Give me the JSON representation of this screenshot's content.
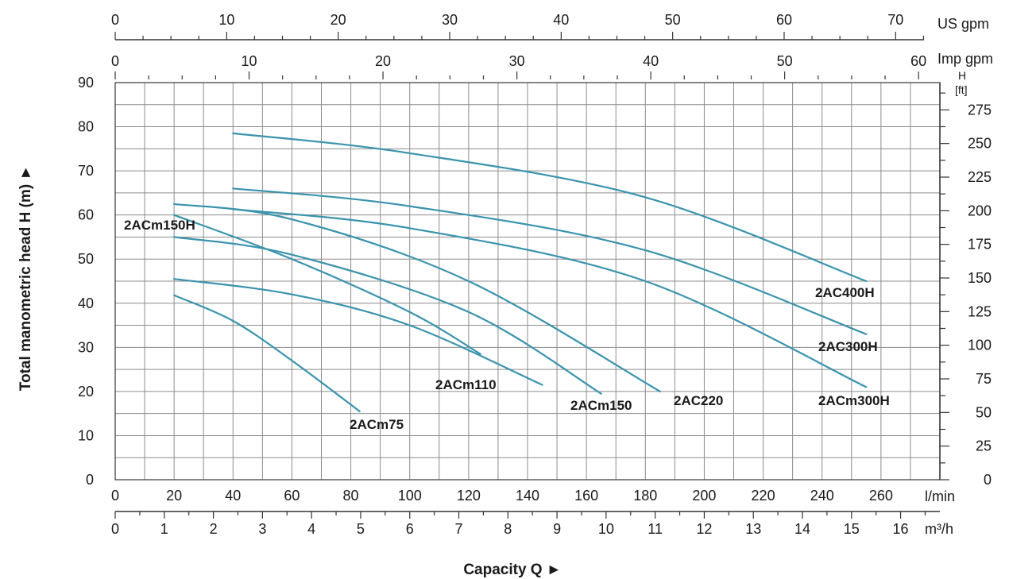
{
  "chart_data": {
    "type": "line",
    "xlabel": "Capacity Q  ►",
    "ylabel": "Total manometric head H (m)  ►",
    "line_color": "#3a93ad",
    "x_unit": "l/min",
    "xlim": [
      0,
      280
    ],
    "ylim": [
      0,
      90
    ],
    "grid": true,
    "axes": {
      "left": {
        "unit": "m",
        "ticks": [
          "0",
          "10",
          "20",
          "30",
          "40",
          "50",
          "60",
          "70",
          "80",
          "90"
        ]
      },
      "right": {
        "unit_line1": "H",
        "unit_line2": "[ft]",
        "ticks": [
          "0",
          "25",
          "50",
          "75",
          "100",
          "125",
          "150",
          "175",
          "200",
          "225",
          "250",
          "275"
        ]
      },
      "bottom_lmin": {
        "unit": "l/min",
        "ticks": [
          "0",
          "20",
          "40",
          "60",
          "80",
          "100",
          "120",
          "140",
          "160",
          "180",
          "200",
          "220",
          "240",
          "260"
        ]
      },
      "bottom_m3h": {
        "unit": "m³/h",
        "ticks": [
          "0",
          "1",
          "2",
          "3",
          "4",
          "5",
          "6",
          "7",
          "8",
          "9",
          "10",
          "11",
          "12",
          "13",
          "14",
          "15",
          "16"
        ]
      },
      "top_imp": {
        "unit": "Imp gpm",
        "ticks": [
          "0",
          "10",
          "20",
          "30",
          "40",
          "50",
          "60"
        ]
      },
      "top_us": {
        "unit": "US gpm",
        "ticks": [
          "0",
          "10",
          "20",
          "30",
          "40",
          "50",
          "60",
          "70"
        ]
      }
    },
    "series": [
      {
        "name": "2ACm75",
        "x": [
          20,
          40,
          60,
          83
        ],
        "y": [
          41.8,
          36,
          27,
          15.5
        ]
      },
      {
        "name": "2ACm110",
        "x": [
          20,
          60,
          100,
          145
        ],
        "y": [
          45.5,
          42,
          35,
          21.5
        ]
      },
      {
        "name": "2ACm150",
        "x": [
          20,
          60,
          120,
          165
        ],
        "y": [
          55,
          51,
          38,
          19.5
        ]
      },
      {
        "name": "2ACm150H",
        "x": [
          20,
          60,
          100,
          124
        ],
        "y": [
          60,
          50,
          38,
          28.5
        ]
      },
      {
        "name": "2AC220",
        "x": [
          20,
          60,
          120,
          185
        ],
        "y": [
          62.5,
          59,
          45,
          20
        ]
      },
      {
        "name": "2ACm300H",
        "x": [
          40,
          100,
          180,
          255
        ],
        "y": [
          61.3,
          57,
          45,
          21
        ]
      },
      {
        "name": "2AC300H",
        "x": [
          40,
          100,
          180,
          255
        ],
        "y": [
          66,
          62,
          52,
          33
        ]
      },
      {
        "name": "2AC400H",
        "x": [
          40,
          100,
          180,
          255
        ],
        "y": [
          78.5,
          74,
          64,
          45
        ]
      }
    ]
  }
}
